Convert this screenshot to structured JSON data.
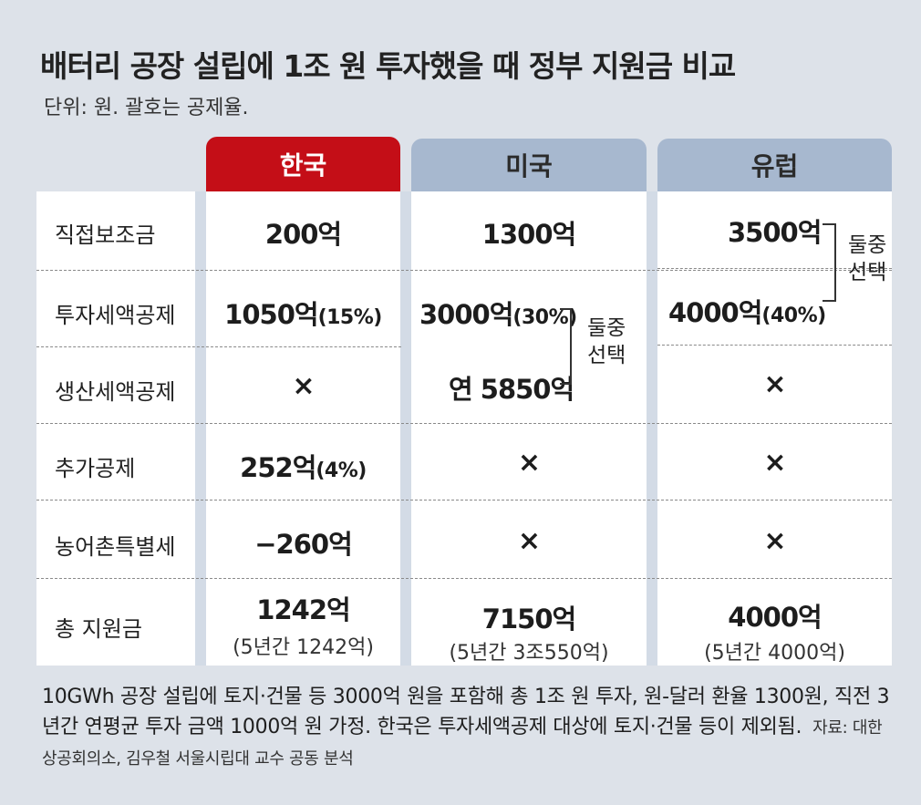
{
  "title": "배터리 공장 설립에 1조 원 투자했을 때 정부 지원금 비교",
  "unit_note": "단위: 원. 괄호는 공제율.",
  "columns": {
    "korea": "한국",
    "usa": "미국",
    "eu": "유럽"
  },
  "rows": {
    "direct_subsidy": {
      "label": "직접보조금",
      "korea": "200억",
      "usa": "1300억",
      "eu": "3500억"
    },
    "investment_credit": {
      "label": "투자세액공제",
      "korea": "1050억",
      "korea_rate": "(15%)",
      "usa": "3000억",
      "usa_rate": "(30%)",
      "eu": "4000억",
      "eu_rate": "(40%)"
    },
    "production_credit": {
      "label": "생산세액공제",
      "korea": "×",
      "usa": "연 5850억",
      "eu": "×"
    },
    "additional_credit": {
      "label": "추가공제",
      "korea": "252억",
      "korea_rate": "(4%)",
      "usa": "×",
      "eu": "×"
    },
    "rural_tax": {
      "label": "농어촌특별세",
      "korea": "−260억",
      "usa": "×",
      "eu": "×"
    },
    "total": {
      "label": "총 지원금",
      "korea": "1242억",
      "korea_sub": "(5년간 1242억)",
      "usa": "7150억",
      "usa_sub": "(5년간 3조550억)",
      "eu": "4000억",
      "eu_sub": "(5년간 4000억)"
    }
  },
  "usa_choice_note": [
    "둘중",
    "선택"
  ],
  "eu_choice_note": [
    "둘중",
    "선택"
  ],
  "footnote": {
    "text": "10GWh 공장 설립에 토지·건물 등 3000억 원을 포함해 총 1조 원 투자, 원-달러 환율 1300원, 직전 3년간 연평균 투자 금액 1000억 원 가정. 한국은 투자세액공제 대상에 토지·건물 등이 제외됨.",
    "source": "자료: 대한상공회의소, 김우철 서울시립대 교수 공동 분석"
  }
}
